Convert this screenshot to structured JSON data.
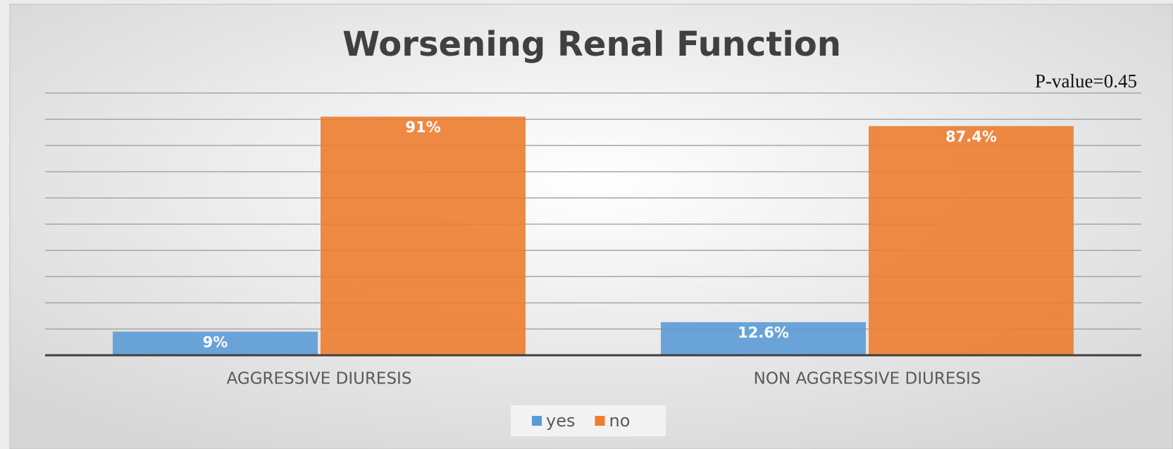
{
  "chart_data": {
    "type": "bar",
    "title": "Worsening Renal Function",
    "annotation": "P-value=0.45",
    "categories": [
      "AGGRESSIVE DIURESIS",
      "NON AGGRESSIVE DIURESIS"
    ],
    "series": [
      {
        "name": "yes",
        "color": "#5b9bd5",
        "values": [
          9,
          12.6
        ],
        "value_labels": [
          "9%",
          "12.6%"
        ]
      },
      {
        "name": "no",
        "color": "#ed7d31",
        "values": [
          91,
          87.4
        ],
        "value_labels": [
          "91%",
          "87.4%"
        ]
      }
    ],
    "ylim": [
      0,
      100
    ],
    "yticks": [
      0,
      10,
      20,
      30,
      40,
      50,
      60,
      70,
      80,
      90,
      100
    ],
    "grid": true,
    "legend": "bottom"
  }
}
